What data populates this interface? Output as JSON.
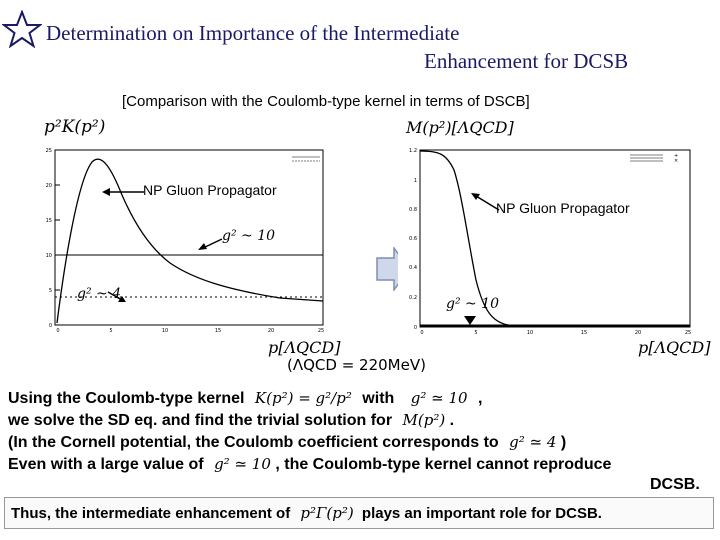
{
  "title": {
    "line1": "Determination on Importance of the Intermediate",
    "line2": "Enhancement for DCSB"
  },
  "subtitle": "[Comparison with the Coulomb-type kernel in terms of DSCB]",
  "left_plot": {
    "ylabel": "p²K(p²)",
    "xlabel": "p[ΛQCD]",
    "annotation_np": "NP Gluon Propagator",
    "annotation_g10": "g² ~ 10",
    "annotation_g4": "g² ~ 4",
    "yticks": [
      "0",
      "5",
      "10",
      "15",
      "20",
      "25"
    ],
    "xticks": [
      "0",
      "5",
      "10",
      "15",
      "20",
      "25"
    ]
  },
  "right_plot": {
    "ylabel": "M(p²)[ΛQCD]",
    "xlabel": "p[ΛQCD]",
    "annotation_np": "NP Gluon Propagator",
    "annotation_g10": "g² ~ 10",
    "yticks": [
      "0",
      "0.2",
      "0.4",
      "0.6",
      "0.8",
      "1",
      "1.2"
    ],
    "xticks": [
      "0",
      "5",
      "10",
      "15",
      "20",
      "25"
    ]
  },
  "lambda_note": "(ΛQCD = 220MeV)",
  "text": {
    "line1_pre": "Using the Coulomb-type kernel",
    "line1_math": "K(p²) = g²/p²",
    "line1_mid": "with",
    "line1_math2": "g² ≃ 10",
    "line1_end": ",",
    "line2_pre": "we solve the SD eq. and find the trivial solution for",
    "line2_math": "M(p²)",
    "line2_end": ".",
    "line3_pre": "(In the Cornell potential, the Coulomb coefficient corresponds to",
    "line3_math": "g² ≃ 4",
    "line3_end": ")",
    "line4_pre": "Even with a large value of",
    "line4_math": "g² ≃ 10",
    "line4_end": ", the Coulomb-type kernel cannot reproduce",
    "line5": "DCSB."
  },
  "conclusion": {
    "pre": "Thus, the intermediate enhancement of",
    "math": "p²Γ(p²)",
    "post": "plays an important role for DCSB."
  },
  "colors": {
    "title": "#1a1a66",
    "arrow_fill": "#cfd8ea",
    "arrow_stroke": "#7f8fb0"
  }
}
